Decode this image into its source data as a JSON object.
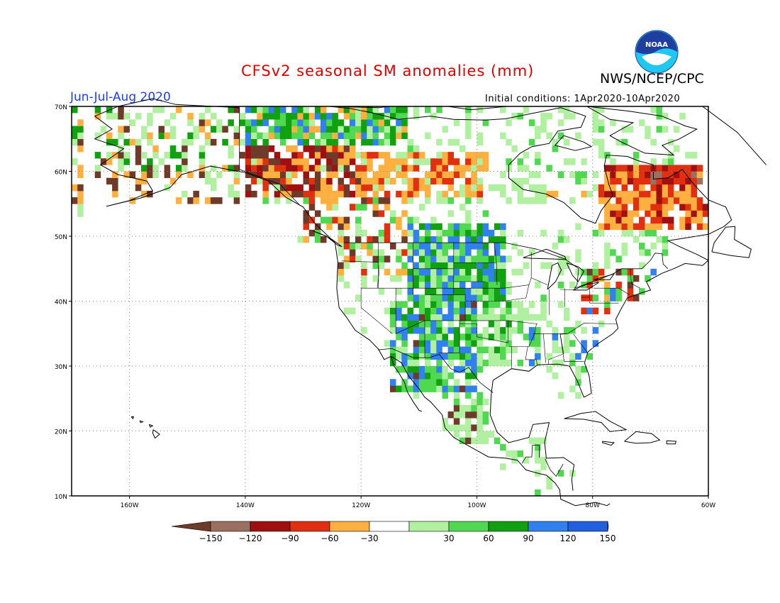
{
  "title": "CFSv2 seasonal SM anomalies (mm)",
  "agency": "NWS/NCEP/CPC",
  "logo_text": "NOAA",
  "period": "Jun-Jul-Aug 2020",
  "initial_conditions": "Initial conditions: 1Apr2020-10Apr2020",
  "lat_labels": [
    "70N",
    "60N",
    "50N",
    "40N",
    "30N",
    "20N",
    "10N"
  ],
  "lon_labels": [
    "160W",
    "140W",
    "120W",
    "100W",
    "80W",
    "60W"
  ],
  "legend": {
    "tick_labels": [
      "-150",
      "-120",
      "-90",
      "-60",
      "-30",
      "30",
      "60",
      "90",
      "120",
      "150"
    ],
    "colors": [
      "#6e3b2a",
      "#9a7060",
      "#a01010",
      "#e03010",
      "#ffb040",
      "#ffffff",
      "#b0f0a0",
      "#50d850",
      "#10a010",
      "#3080f0",
      "#2060e0",
      "#3a1a10"
    ]
  },
  "colors": {
    "title": "#e00000",
    "period": "#1a3cff",
    "grid": "#888888",
    "coast": "#000000"
  }
}
